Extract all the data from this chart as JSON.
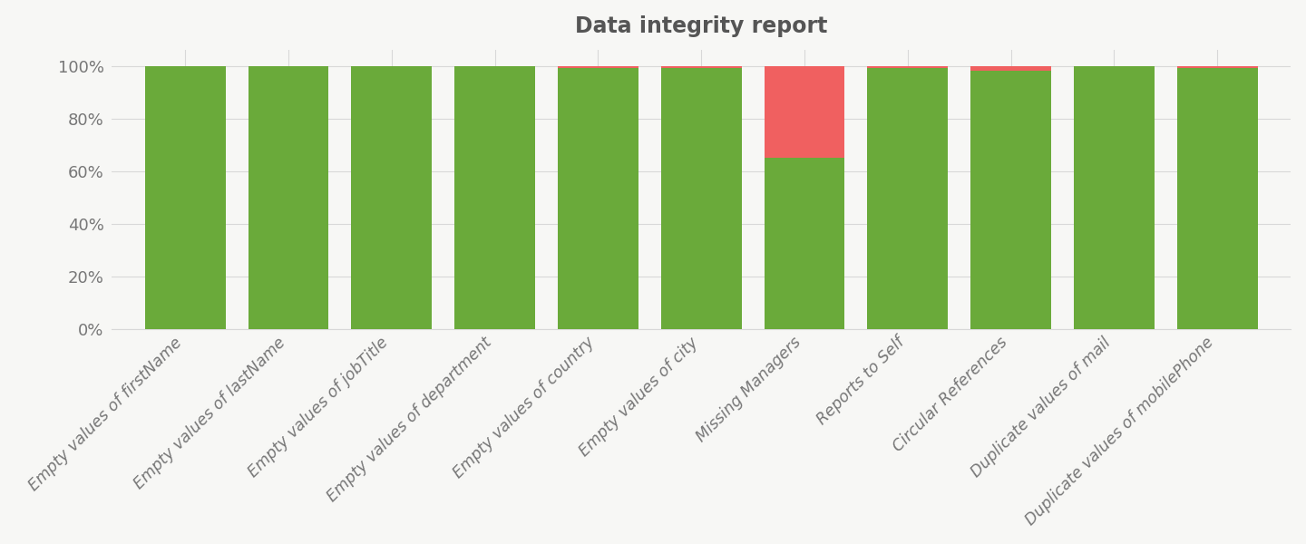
{
  "title": "Data integrity report",
  "categories": [
    "Empty values of firstName",
    "Empty values of lastName",
    "Empty values of jobTitle",
    "Empty values of department",
    "Empty values of country",
    "Empty values of city",
    "Missing Managers",
    "Reports to Self",
    "Circular References",
    "Duplicate values of mail",
    "Duplicate values of mobilePhone"
  ],
  "green_values": [
    100,
    100,
    100,
    100,
    99,
    99,
    65,
    99,
    98,
    100,
    99
  ],
  "red_values": [
    0,
    0,
    0,
    0,
    1,
    1,
    35,
    1,
    2,
    0,
    1
  ],
  "green_color": "#6aaa3a",
  "red_color": "#f06060",
  "background_color": "#f7f7f5",
  "grid_color": "#d8d8d8",
  "title_color": "#555555",
  "label_color": "#777777",
  "title_fontsize": 17,
  "tick_fontsize": 12.5,
  "ytick_fontsize": 13,
  "ylabel_ticks": [
    0,
    20,
    40,
    60,
    80,
    100
  ],
  "ylim": [
    0,
    106
  ],
  "bar_width": 0.78
}
